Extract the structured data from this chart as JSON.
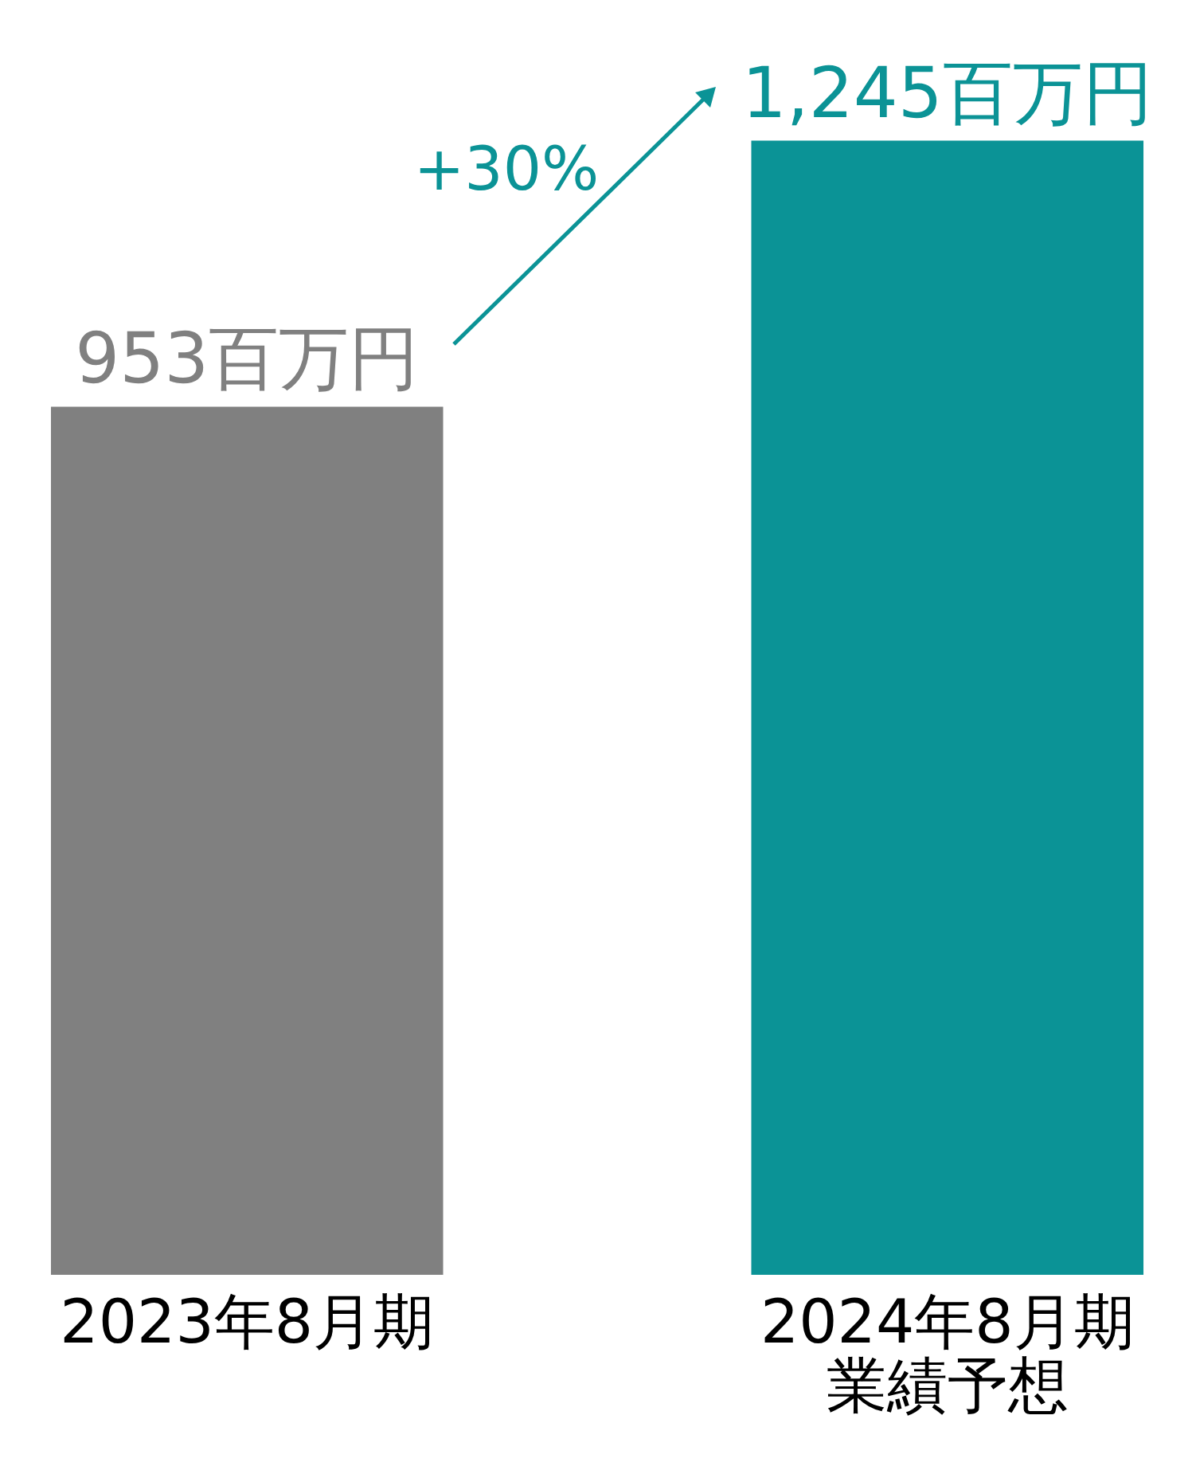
{
  "chart_data": {
    "type": "bar",
    "categories": [
      "2023年8月期",
      "2024年8月期業績予想"
    ],
    "values": [
      953,
      1245
    ],
    "colors": [
      "#808080",
      "#0b9396"
    ],
    "value_labels": [
      "953百万円",
      "1,245百万円"
    ],
    "annotations": [
      "+30%"
    ],
    "grid": false
  }
}
